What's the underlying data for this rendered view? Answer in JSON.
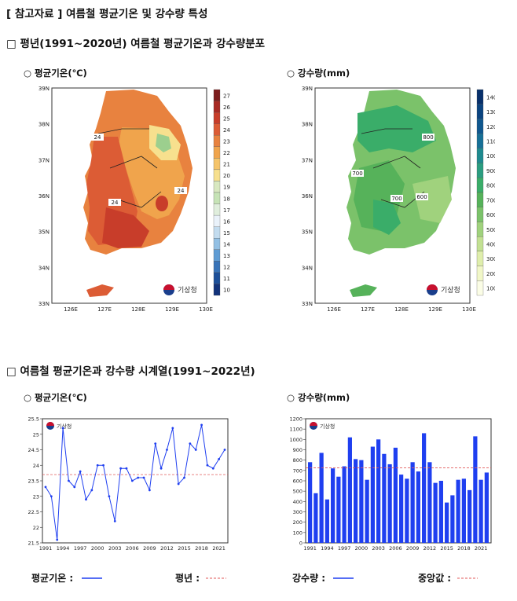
{
  "page": {
    "title": "[ 참고자료 ] 여름철 평균기온 및 강수량 특성",
    "section1": "□ 평년(1991~2020년) 여름철 평균기온과 강수량분포",
    "section2": "□ 여름철 평균기온과 강수량 시계열(1991~2022년)",
    "temp_label": "○ 평균기온(℃)",
    "rain_label": "○ 강수량(mm)",
    "kma_label": "기상청",
    "legend_temp": "평균기온 :",
    "legend_normal": "평년 :",
    "legend_rain": "강수량 :",
    "legend_median": "중앙값 :"
  },
  "colors": {
    "series_blue": "#1f3ff0",
    "ref_red": "#e05a5a"
  },
  "chart_data": [
    {
      "type": "heatmap",
      "name": "temperature-map",
      "title": "평균기온(℃)",
      "lat_ticks": [
        "39N",
        "38N",
        "37N",
        "36N",
        "35N",
        "34N",
        "33N"
      ],
      "lon_ticks": [
        "126E",
        "127E",
        "128E",
        "129E",
        "130E"
      ],
      "contour_labels": [
        "24",
        "24",
        "24"
      ],
      "colorbar": {
        "values": [
          27,
          26,
          25,
          24,
          23,
          22,
          21,
          20,
          19,
          18,
          17,
          16,
          15,
          14,
          13,
          12,
          11,
          10
        ],
        "colors": [
          "#7d1d1d",
          "#a82a24",
          "#c83d2a",
          "#dc5c35",
          "#e8823f",
          "#f0a44c",
          "#f5c46a",
          "#f7e08e",
          "#d8e8c0",
          "#c6e3b6",
          "#e0eedd",
          "#eaf2fa",
          "#c3dcef",
          "#93c0e4",
          "#5f9cd4",
          "#3873b8",
          "#1d4f99",
          "#12327a"
        ]
      }
    },
    {
      "type": "heatmap",
      "name": "rainfall-map",
      "title": "강수량(mm)",
      "lat_ticks": [
        "39N",
        "38N",
        "37N",
        "36N",
        "35N",
        "34N",
        "33N"
      ],
      "lon_ticks": [
        "126E",
        "127E",
        "128E",
        "129E",
        "130E"
      ],
      "contour_labels": [
        "800",
        "700",
        "700",
        "600"
      ],
      "colorbar": {
        "values": [
          1400,
          1300,
          1200,
          1100,
          1000,
          900,
          800,
          700,
          600,
          500,
          400,
          300,
          200,
          100
        ],
        "colors": [
          "#08306b",
          "#0b4480",
          "#10588f",
          "#177097",
          "#1f8a8f",
          "#2b9d80",
          "#3aad69",
          "#56b25a",
          "#7bc26a",
          "#a0d27d",
          "#c3e193",
          "#dfeeac",
          "#f1f7c8",
          "#fbfde6"
        ]
      }
    },
    {
      "type": "line",
      "name": "temperature-series",
      "title": "평균기온(℃)",
      "x": [
        1991,
        1992,
        1993,
        1994,
        1995,
        1996,
        1997,
        1998,
        1999,
        2000,
        2001,
        2002,
        2003,
        2004,
        2005,
        2006,
        2007,
        2008,
        2009,
        2010,
        2011,
        2012,
        2013,
        2014,
        2015,
        2016,
        2017,
        2018,
        2019,
        2020,
        2021,
        2022
      ],
      "values": [
        23.3,
        23.0,
        21.6,
        25.2,
        23.5,
        23.3,
        23.8,
        22.9,
        23.2,
        24.0,
        24.0,
        23.0,
        22.2,
        23.9,
        23.9,
        23.5,
        23.6,
        23.6,
        23.2,
        24.7,
        23.9,
        24.5,
        25.2,
        23.4,
        23.6,
        24.7,
        24.5,
        25.3,
        24.0,
        23.9,
        24.2,
        24.5
      ],
      "normal": 23.7,
      "ylim": [
        21.5,
        25.5
      ],
      "yticks": [
        "25.5",
        "25",
        "24.5",
        "24",
        "23.5",
        "23",
        "22.5",
        "22",
        "21.5"
      ],
      "xticks": [
        "1991",
        "1994",
        "1997",
        "2000",
        "2003",
        "2006",
        "2009",
        "2012",
        "2015",
        "2018",
        "2021"
      ]
    },
    {
      "type": "bar",
      "name": "rainfall-series",
      "title": "강수량(mm)",
      "x": [
        1991,
        1992,
        1993,
        1994,
        1995,
        1996,
        1997,
        1998,
        1999,
        2000,
        2001,
        2002,
        2003,
        2004,
        2005,
        2006,
        2007,
        2008,
        2009,
        2010,
        2011,
        2012,
        2013,
        2014,
        2015,
        2016,
        2017,
        2018,
        2019,
        2020,
        2021,
        2022
      ],
      "values": [
        780,
        480,
        870,
        420,
        720,
        640,
        740,
        1020,
        810,
        800,
        610,
        930,
        1000,
        860,
        760,
        920,
        660,
        620,
        780,
        690,
        1060,
        780,
        580,
        600,
        390,
        460,
        610,
        620,
        510,
        1030,
        610,
        680
      ],
      "median": 725,
      "ylim": [
        0,
        1200
      ],
      "yticks": [
        "1200",
        "1100",
        "1000",
        "900",
        "800",
        "700",
        "600",
        "500",
        "400",
        "300",
        "200",
        "100",
        "0"
      ],
      "xticks": [
        "1991",
        "1994",
        "1997",
        "2000",
        "2003",
        "2006",
        "2009",
        "2012",
        "2015",
        "2018",
        "2021"
      ]
    }
  ]
}
